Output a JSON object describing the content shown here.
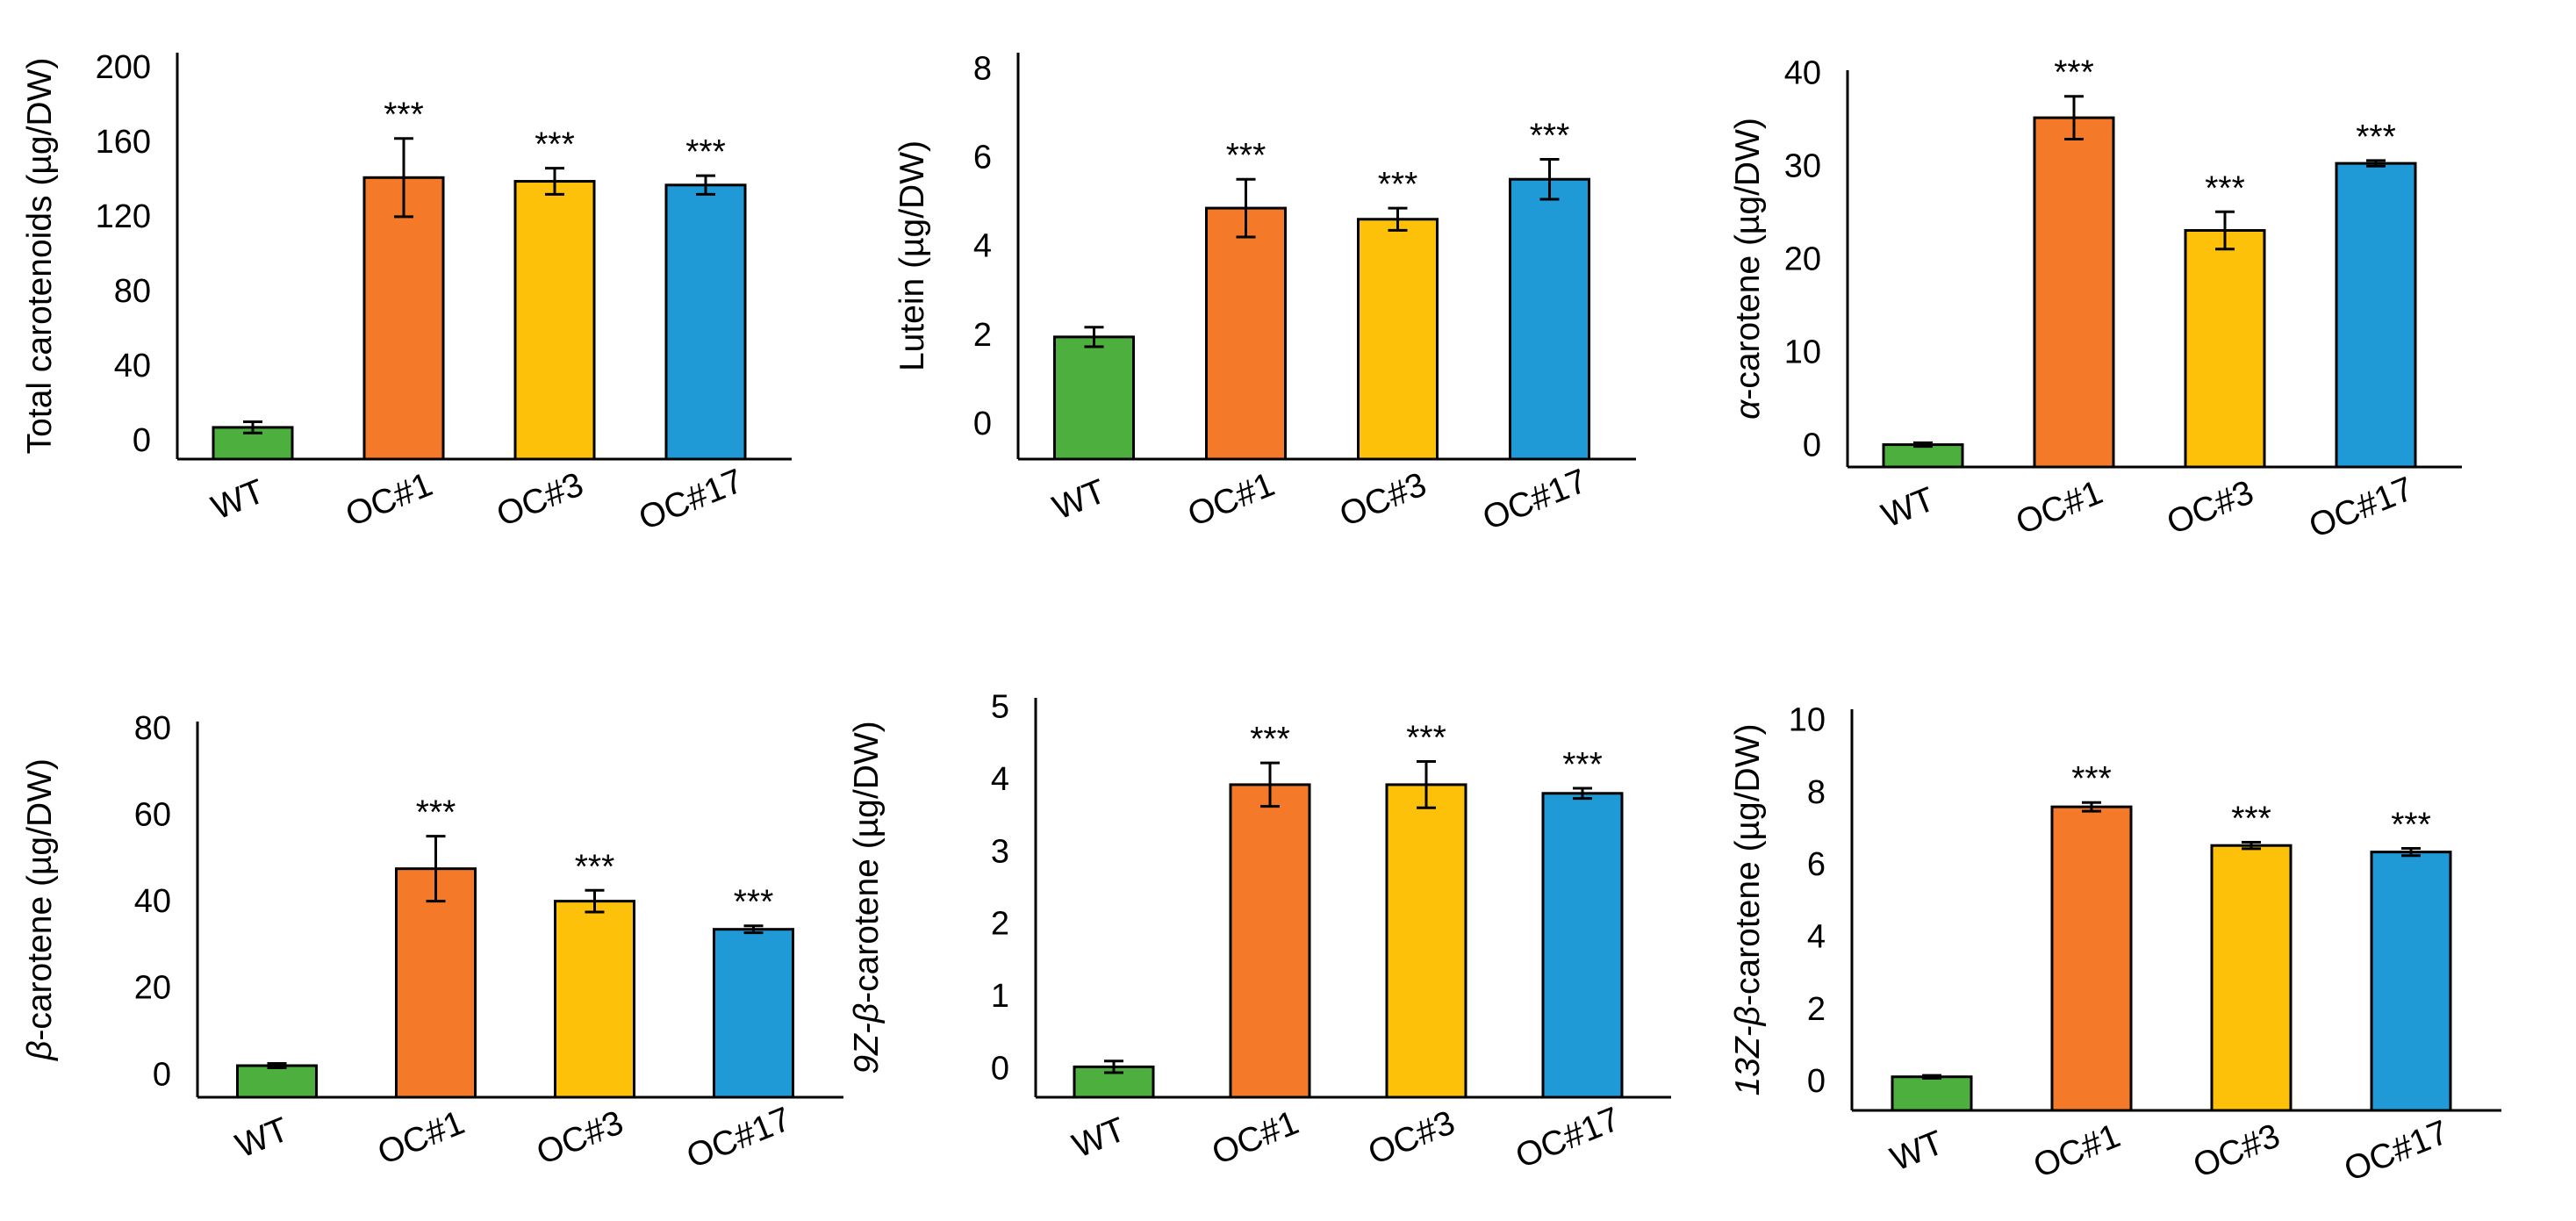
{
  "colors": {
    "WT": "#4caf3e",
    "OC#1": "#f47a2a",
    "OC#3": "#fec10a",
    "OC#17": "#1f9ad6",
    "axis": "#000000"
  },
  "significance_marker": "***",
  "chart_data": [
    {
      "type": "bar",
      "ylabel": "Total carotenoids (µg/DW)",
      "categories": [
        "WT",
        "OC#1",
        "OC#3",
        "OC#17"
      ],
      "values": [
        8,
        142,
        140,
        138
      ],
      "errors": [
        3,
        21,
        7,
        5
      ],
      "significance": [
        "",
        "***",
        "***",
        "***"
      ],
      "yticks": [
        0,
        40,
        80,
        120,
        160,
        200
      ],
      "ylim": [
        -9,
        209
      ]
    },
    {
      "type": "bar",
      "ylabel": "Lutein (µg/DW)",
      "categories": [
        "WT",
        "OC#1",
        "OC#3",
        "OC#17"
      ],
      "values": [
        2,
        4.9,
        4.65,
        5.55
      ],
      "errors": [
        0.22,
        0.65,
        0.25,
        0.45
      ],
      "significance": [
        "",
        "***",
        "***",
        "***"
      ],
      "yticks": [
        0,
        2,
        4,
        6,
        8
      ],
      "ylim": [
        -0.75,
        8.4
      ]
    },
    {
      "type": "bar",
      "ylabel": "α-carotene (µg/DW)",
      "ylabel_parts": [
        {
          "text": "α",
          "italic": true
        },
        {
          "text": "-carotene (µg/DW)",
          "italic": false
        }
      ],
      "categories": [
        "WT",
        "OC#1",
        "OC#3",
        "OC#17"
      ],
      "values": [
        0.3,
        35.4,
        23.3,
        30.5
      ],
      "errors": [
        0.2,
        2.3,
        2.0,
        0.3
      ],
      "significance": [
        "",
        "***",
        "***",
        "***"
      ],
      "yticks": [
        0,
        10,
        20,
        30,
        40
      ],
      "ylim": [
        -2.1,
        40.5
      ]
    },
    {
      "type": "bar",
      "ylabel": "β-carotene (µg/DW)",
      "ylabel_parts": [
        {
          "text": "β",
          "italic": true
        },
        {
          "text": "-carotene (µg/DW)",
          "italic": false
        }
      ],
      "categories": [
        "WT",
        "OC#1",
        "OC#3",
        "OC#17"
      ],
      "values": [
        2.5,
        48,
        40.5,
        34
      ],
      "errors": [
        0.5,
        7.5,
        2.5,
        0.8
      ],
      "significance": [
        "",
        "***",
        "***",
        "***"
      ],
      "yticks": [
        0,
        20,
        40,
        60,
        80
      ],
      "ylim": [
        -4.8,
        82
      ]
    },
    {
      "type": "bar",
      "ylabel": "9Z-β-carotene (µg/DW)",
      "ylabel_parts": [
        {
          "text": "9Z-β",
          "italic": true
        },
        {
          "text": "-carotene (µg/DW)",
          "italic": false
        }
      ],
      "categories": [
        "WT",
        "OC#1",
        "OC#3",
        "OC#17"
      ],
      "values": [
        0.05,
        3.95,
        3.95,
        3.83
      ],
      "errors": [
        0.08,
        0.3,
        0.32,
        0.07
      ],
      "significance": [
        "",
        "***",
        "***",
        "***"
      ],
      "yticks": [
        0,
        1,
        2,
        3,
        4,
        5
      ],
      "ylim": [
        -0.37,
        5.15
      ]
    },
    {
      "type": "bar",
      "ylabel": "13Z-β-carotene (µg/DW)",
      "ylabel_parts": [
        {
          "text": "13Z-β",
          "italic": true
        },
        {
          "text": "-carotene (µg/DW)",
          "italic": false
        }
      ],
      "categories": [
        "WT",
        "OC#1",
        "OC#3",
        "OC#17"
      ],
      "values": [
        0.18,
        7.65,
        6.58,
        6.4
      ],
      "errors": [
        0.04,
        0.12,
        0.09,
        0.1
      ],
      "significance": [
        "",
        "***",
        "***",
        "***"
      ],
      "yticks": [
        0,
        2,
        4,
        6,
        8,
        10
      ],
      "ylim": [
        -0.75,
        10.35
      ]
    }
  ]
}
